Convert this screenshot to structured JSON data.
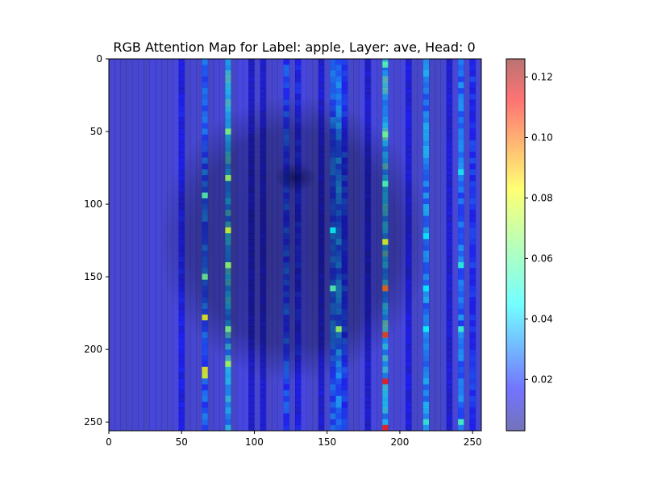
{
  "chart_data": {
    "type": "heatmap",
    "title": "RGB Attention Map for Label: apple, Layer: ave, Head: 0",
    "xlabel": "",
    "ylabel": "",
    "xlim": [
      0,
      256
    ],
    "ylim": [
      256,
      0
    ],
    "x_ticks": [
      {
        "value": 0,
        "label": "0"
      },
      {
        "value": 50,
        "label": "50"
      },
      {
        "value": 100,
        "label": "100"
      },
      {
        "value": 150,
        "label": "150"
      },
      {
        "value": 200,
        "label": "200"
      },
      {
        "value": 250,
        "label": "250"
      }
    ],
    "y_ticks": [
      {
        "value": 0,
        "label": "0"
      },
      {
        "value": 50,
        "label": "50"
      },
      {
        "value": 100,
        "label": "100"
      },
      {
        "value": 150,
        "label": "150"
      },
      {
        "value": 200,
        "label": "200"
      },
      {
        "value": 250,
        "label": "250"
      }
    ],
    "colormap": "jet",
    "overlay_alpha": 0.5,
    "background_image": "apple photo (dark grey) under attention overlay",
    "colorbar": {
      "range": [
        0.003,
        0.126
      ],
      "ticks": [
        {
          "value": 0.02,
          "label": "0.02"
        },
        {
          "value": 0.04,
          "label": "0.04"
        },
        {
          "value": 0.06,
          "label": "0.06"
        },
        {
          "value": 0.08,
          "label": "0.08"
        },
        {
          "value": 0.1,
          "label": "0.10"
        },
        {
          "value": 0.12,
          "label": "0.12"
        }
      ]
    },
    "attention_columns": [
      {
        "x": 50,
        "base": 0.016
      },
      {
        "x": 66,
        "base": 0.03
      },
      {
        "x": 82,
        "base": 0.045
      },
      {
        "x": 98,
        "base": 0.012
      },
      {
        "x": 106,
        "base": 0.01
      },
      {
        "x": 122,
        "base": 0.026
      },
      {
        "x": 130,
        "base": 0.018
      },
      {
        "x": 146,
        "base": 0.012
      },
      {
        "x": 154,
        "base": 0.03
      },
      {
        "x": 158,
        "base": 0.035
      },
      {
        "x": 162,
        "base": 0.024
      },
      {
        "x": 178,
        "base": 0.012
      },
      {
        "x": 190,
        "base": 0.048
      },
      {
        "x": 206,
        "base": 0.014
      },
      {
        "x": 218,
        "base": 0.038
      },
      {
        "x": 234,
        "base": 0.012
      },
      {
        "x": 242,
        "base": 0.034
      },
      {
        "x": 250,
        "base": 0.022
      }
    ],
    "hotspots": [
      {
        "x": 190,
        "y": 158,
        "value": 0.1
      },
      {
        "x": 190,
        "y": 190,
        "value": 0.105
      },
      {
        "x": 190,
        "y": 222,
        "value": 0.108
      },
      {
        "x": 190,
        "y": 254,
        "value": 0.11
      },
      {
        "x": 190,
        "y": 126,
        "value": 0.078
      },
      {
        "x": 66,
        "y": 178,
        "value": 0.08
      },
      {
        "x": 66,
        "y": 214,
        "value": 0.08
      },
      {
        "x": 66,
        "y": 218,
        "value": 0.078
      },
      {
        "x": 82,
        "y": 118,
        "value": 0.076
      },
      {
        "x": 82,
        "y": 210,
        "value": 0.072
      },
      {
        "x": 82,
        "y": 82,
        "value": 0.07
      },
      {
        "x": 82,
        "y": 50,
        "value": 0.066
      },
      {
        "x": 82,
        "y": 142,
        "value": 0.068
      },
      {
        "x": 82,
        "y": 186,
        "value": 0.066
      },
      {
        "x": 158,
        "y": 186,
        "value": 0.07
      },
      {
        "x": 154,
        "y": 158,
        "value": 0.06
      },
      {
        "x": 154,
        "y": 118,
        "value": 0.05
      },
      {
        "x": 66,
        "y": 94,
        "value": 0.06
      },
      {
        "x": 66,
        "y": 150,
        "value": 0.064
      },
      {
        "x": 190,
        "y": 4,
        "value": 0.06
      },
      {
        "x": 190,
        "y": 52,
        "value": 0.062
      },
      {
        "x": 190,
        "y": 86,
        "value": 0.058
      },
      {
        "x": 242,
        "y": 78,
        "value": 0.052
      },
      {
        "x": 242,
        "y": 142,
        "value": 0.054
      },
      {
        "x": 242,
        "y": 186,
        "value": 0.056
      },
      {
        "x": 242,
        "y": 250,
        "value": 0.058
      },
      {
        "x": 218,
        "y": 250,
        "value": 0.056
      },
      {
        "x": 218,
        "y": 186,
        "value": 0.05
      },
      {
        "x": 218,
        "y": 158,
        "value": 0.048
      },
      {
        "x": 218,
        "y": 122,
        "value": 0.05
      }
    ]
  }
}
